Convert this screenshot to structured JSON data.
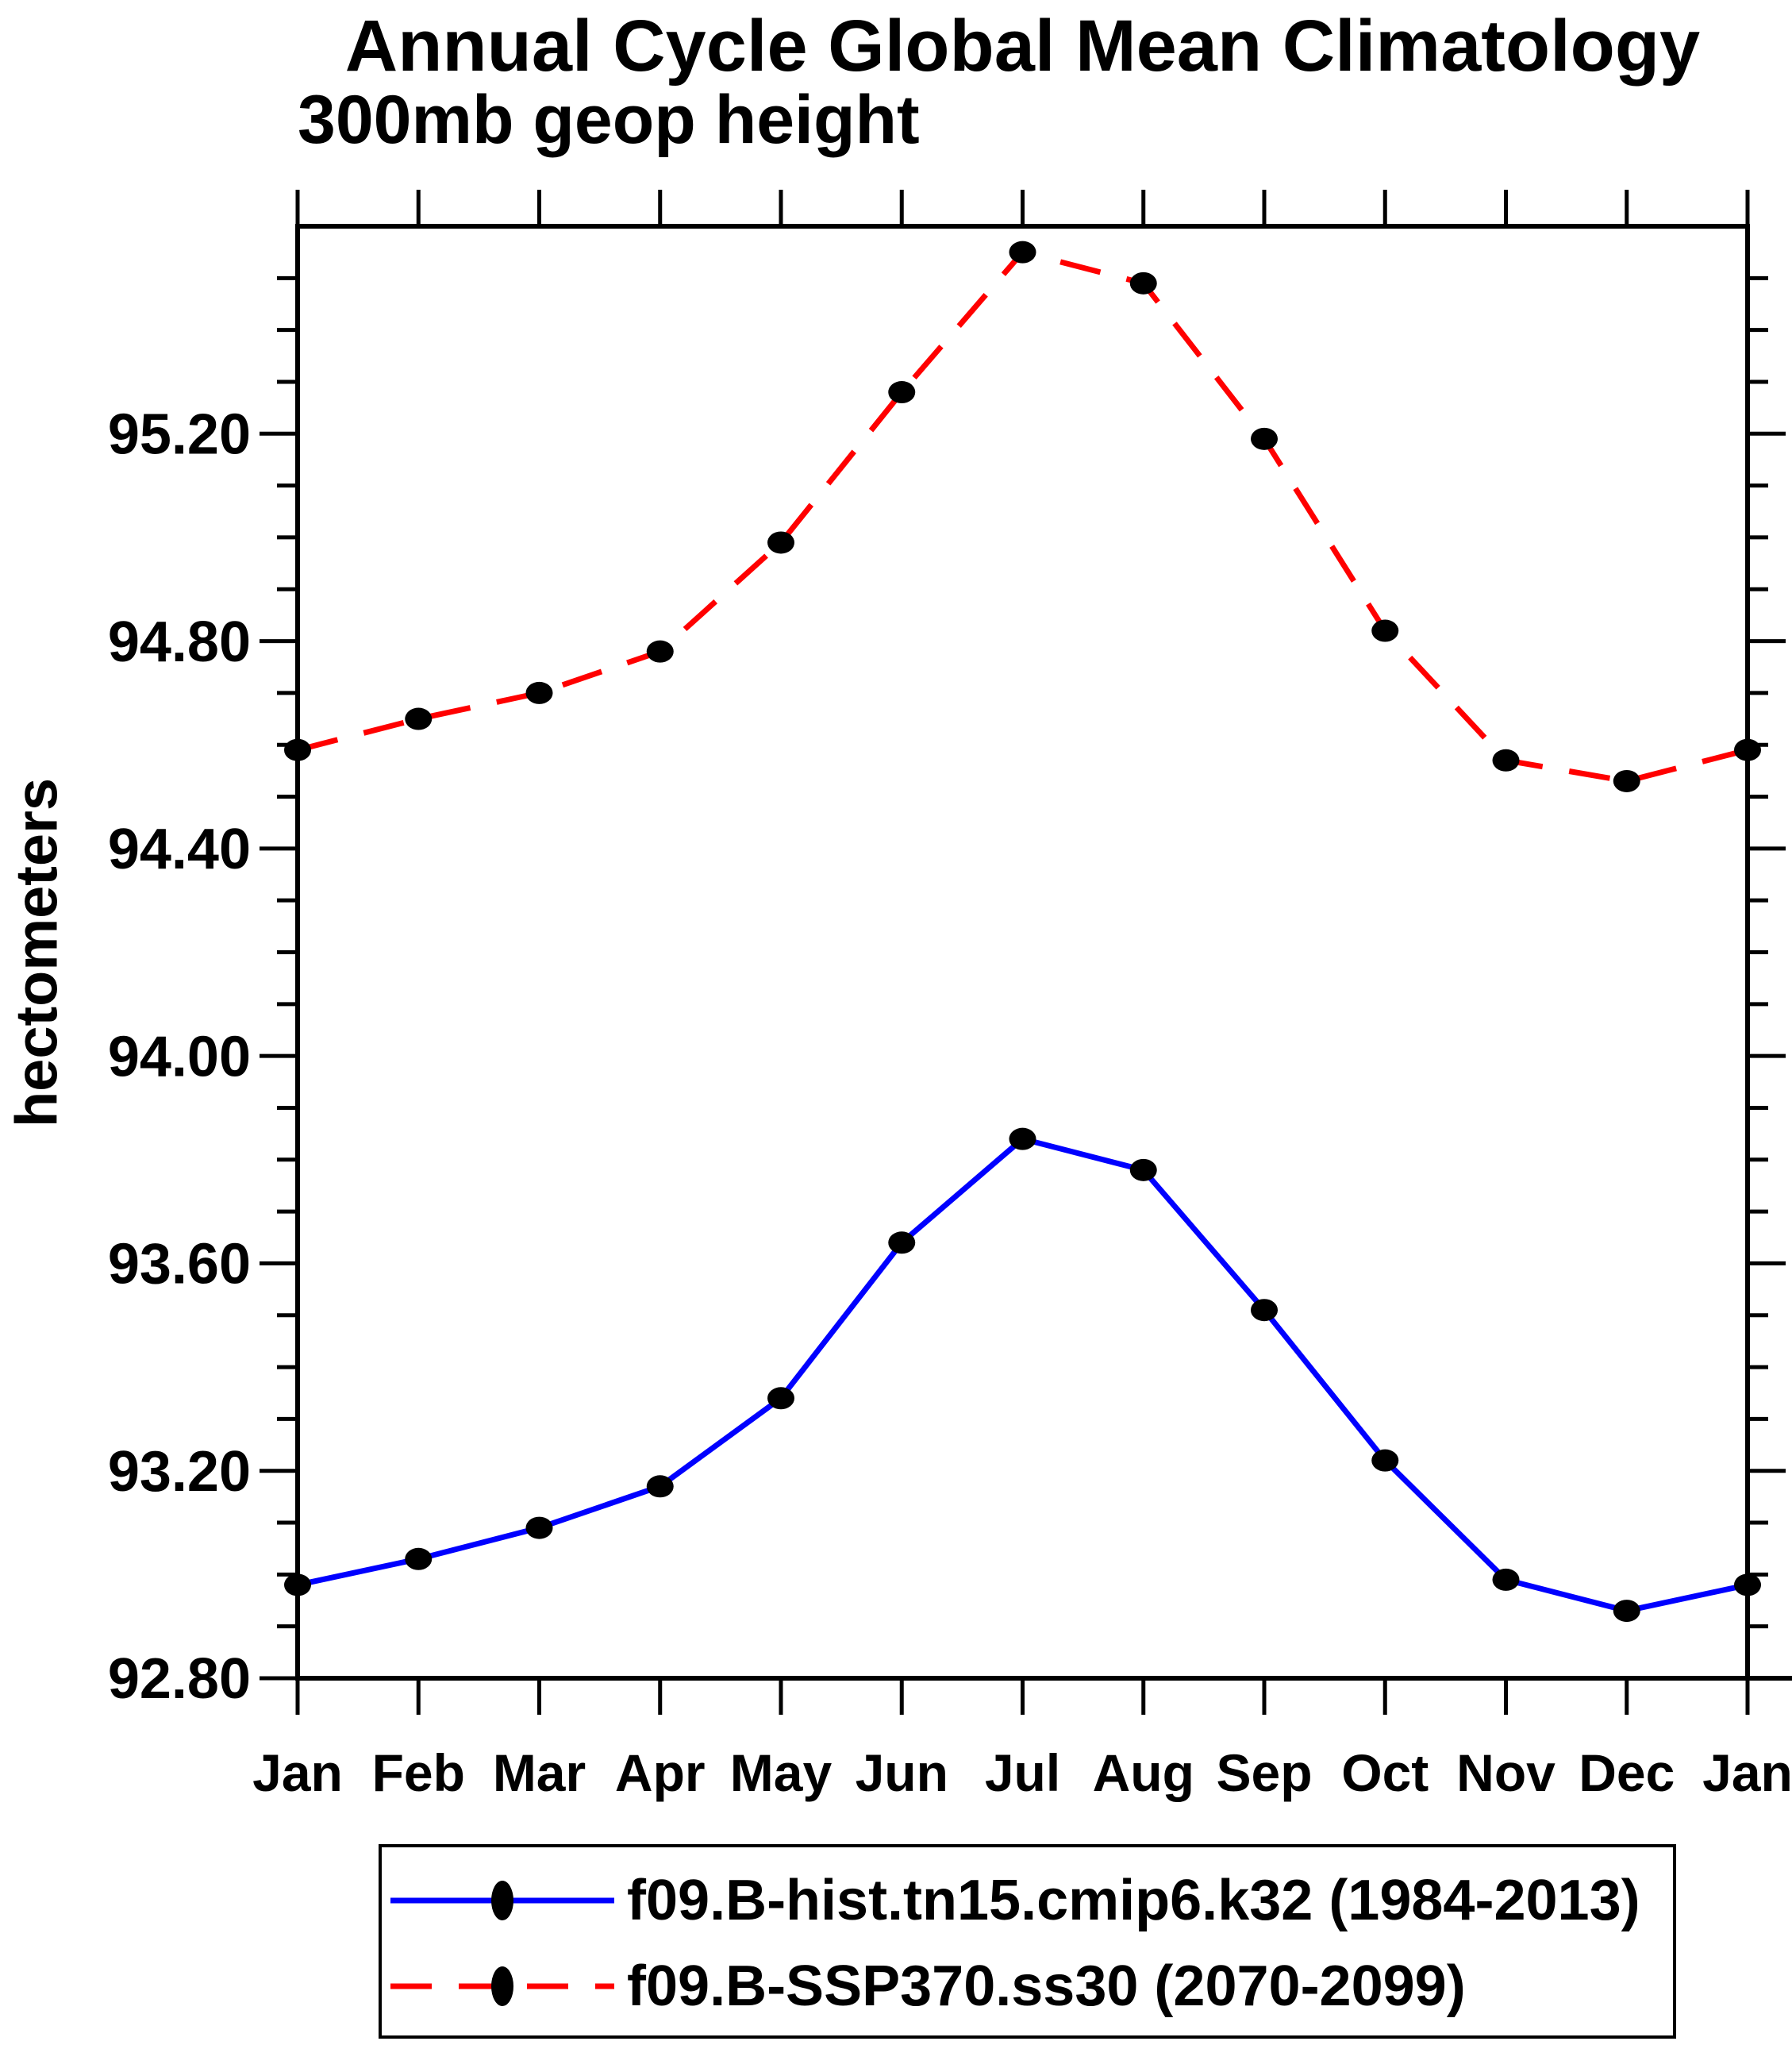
{
  "page": {
    "background": "#ffffff"
  },
  "chart_data": {
    "type": "line",
    "title": "Annual Cycle Global Mean Climatology",
    "subtitle": "300mb geop height",
    "xlabel": "",
    "ylabel": "hectometers",
    "categories": [
      "Jan",
      "Feb",
      "Mar",
      "Apr",
      "May",
      "Jun",
      "Jul",
      "Aug",
      "Sep",
      "Oct",
      "Nov",
      "Dec",
      "Jan"
    ],
    "ylim": [
      92.8,
      95.6
    ],
    "y_major_step": 0.4,
    "y_minor_step": 0.1,
    "y_major_tick_labels": [
      "92.80",
      "93.20",
      "93.60",
      "94.00",
      "94.40",
      "94.80",
      "95.20"
    ],
    "grid": false,
    "axis_color": "#000000",
    "legend_position": "bottom",
    "series": [
      {
        "name": "f09.B-hist.tn15.cmip6.k32 (1984-2013)",
        "line_style": "solid",
        "line_color": "#0000ff",
        "marker": "filled-circle",
        "marker_color": "#000000",
        "values": [
          92.98,
          93.03,
          93.09,
          93.17,
          93.34,
          93.64,
          93.84,
          93.78,
          93.51,
          93.22,
          92.99,
          92.93,
          92.98
        ]
      },
      {
        "name": "f09.B-SSP370.ss30 (2070-2099)",
        "line_style": "dashed",
        "line_color": "#ff0000",
        "marker": "filled-circle",
        "marker_color": "#000000",
        "values": [
          94.59,
          94.65,
          94.7,
          94.78,
          94.99,
          95.28,
          95.55,
          95.49,
          95.19,
          94.82,
          94.57,
          94.53,
          94.59
        ]
      }
    ]
  }
}
